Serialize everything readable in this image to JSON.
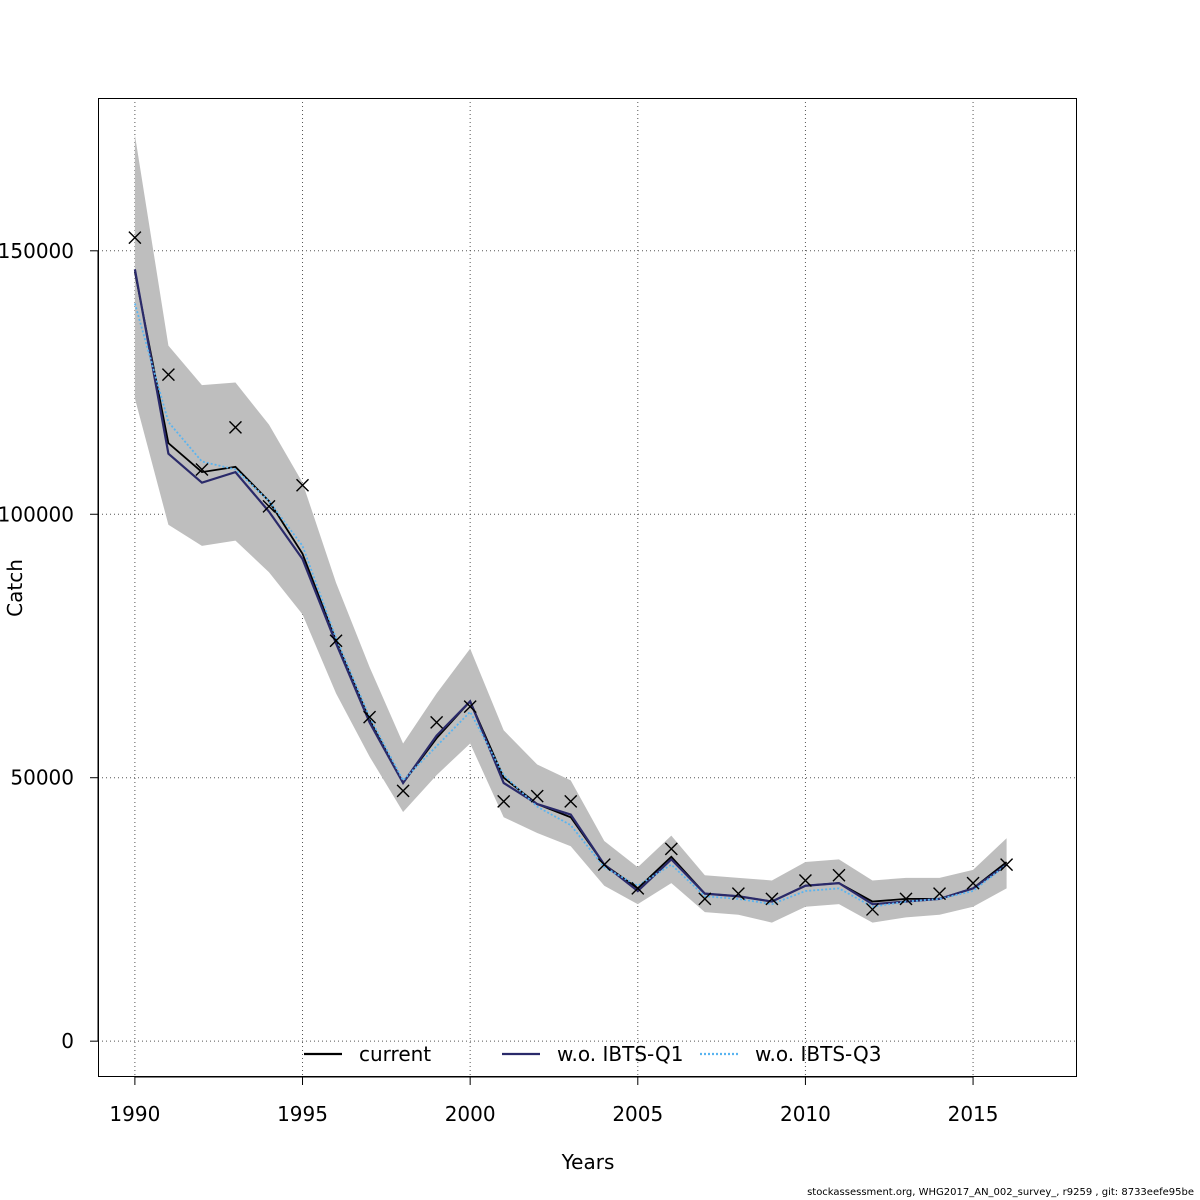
{
  "chart_data": {
    "type": "line",
    "title": "",
    "xlabel": "Years",
    "ylabel": "Catch",
    "xlim": [
      1988.9,
      2018.1
    ],
    "ylim": [
      -6800,
      179000
    ],
    "x_ticks": [
      1990,
      1995,
      2000,
      2005,
      2010,
      2015
    ],
    "y_ticks": [
      0,
      50000,
      100000,
      150000
    ],
    "x_tick_labels": [
      "1990",
      "1995",
      "2000",
      "2005",
      "2010",
      "2015"
    ],
    "y_tick_labels": [
      "0",
      "50000",
      "100000",
      "150000"
    ],
    "grid": true,
    "legend_position": "bottom",
    "years": [
      1990,
      1991,
      1992,
      1993,
      1994,
      1995,
      1996,
      1997,
      1998,
      1999,
      2000,
      2001,
      2002,
      2003,
      2004,
      2005,
      2006,
      2007,
      2008,
      2009,
      2010,
      2011,
      2012,
      2013,
      2014,
      2015,
      2016
    ],
    "confidence_band": {
      "lower": [
        122000,
        98000,
        94000,
        95000,
        89000,
        81000,
        66000,
        54000,
        43500,
        50500,
        56500,
        42500,
        39500,
        37000,
        29500,
        26000,
        30000,
        24500,
        24000,
        22500,
        25500,
        26000,
        22500,
        23500,
        24000,
        25500,
        29000
      ],
      "upper": [
        172000,
        132000,
        124500,
        125000,
        117000,
        106000,
        87000,
        71000,
        56500,
        66000,
        74500,
        59000,
        52500,
        49500,
        38000,
        33000,
        39000,
        31500,
        31000,
        30500,
        34000,
        34500,
        30500,
        31000,
        31000,
        32500,
        38500
      ],
      "color": "#bebebe"
    },
    "series": [
      {
        "name": "current",
        "color": "#000000",
        "dash": "solid",
        "values": [
          146000,
          113500,
          108000,
          109000,
          102500,
          92500,
          76000,
          61000,
          49000,
          57500,
          64500,
          50000,
          45000,
          42500,
          33500,
          29000,
          35000,
          28000,
          27500,
          26500,
          29500,
          30000,
          26500,
          27000,
          27000,
          29000,
          34000
        ]
      },
      {
        "name": "w.o. IBTS-Q1",
        "color": "#2a2a6a",
        "dash": "solid",
        "values": [
          146500,
          111500,
          106000,
          108000,
          100500,
          91500,
          75500,
          60500,
          49000,
          58000,
          64500,
          49000,
          45000,
          43000,
          33500,
          28500,
          34500,
          28000,
          27500,
          26500,
          29500,
          30000,
          26000,
          26500,
          27000,
          29000,
          33500
        ]
      },
      {
        "name": "w.o. IBTS-Q3",
        "color": "#5ab4f0",
        "dash": "dotted",
        "values": [
          140000,
          117500,
          110000,
          108500,
          102500,
          94000,
          76500,
          61500,
          49500,
          56000,
          62500,
          50500,
          44500,
          41000,
          33000,
          29500,
          33500,
          27500,
          27000,
          26000,
          28500,
          29000,
          25500,
          26500,
          27000,
          28500,
          33500
        ]
      }
    ],
    "observed": {
      "marker": "cross",
      "values": [
        152500,
        126500,
        108500,
        116500,
        101500,
        105500,
        76000,
        61500,
        47500,
        60500,
        63500,
        45500,
        46500,
        45500,
        33500,
        29000,
        36500,
        27000,
        28000,
        27000,
        30500,
        31500,
        25000,
        27000,
        28000,
        30000,
        33500
      ]
    }
  },
  "footer": "stockassessment.org, WHG2017_AN_002_survey_, r9259 , git: 8733eefe95be"
}
